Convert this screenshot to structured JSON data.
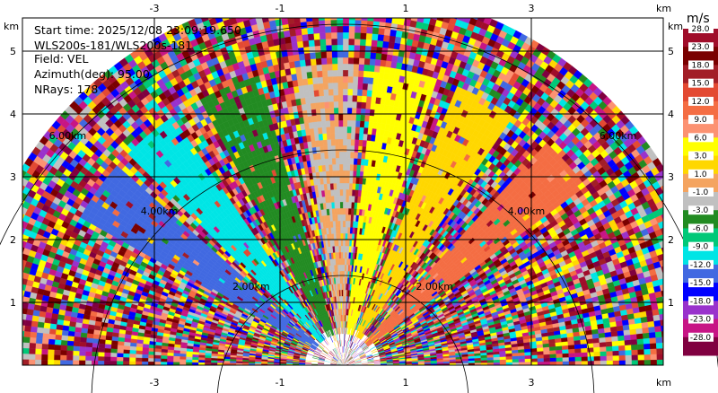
{
  "info": {
    "start_time": "Start time: 2025/12/08 23:09:19.650",
    "station": "WLS200s-181/WLS200s-181",
    "field": "Field: VEL",
    "azimuth": "Azimuth(deg): 95.00",
    "nrays": "NRays: 178"
  },
  "axes": {
    "unit": "km",
    "x_ticks": [
      "-3",
      "-1",
      "1",
      "3"
    ],
    "x_tick_values": [
      -3,
      -1,
      1,
      3
    ],
    "y_ticks": [
      "1",
      "2",
      "3",
      "4",
      "5"
    ],
    "y_tick_values": [
      1,
      2,
      3,
      4,
      5
    ]
  },
  "range_labels": [
    "2.00km",
    "4.00km",
    "6.00km"
  ],
  "colorbar": {
    "title": "m/s",
    "labels": [
      "28.0",
      "23.0",
      "18.0",
      "15.0",
      "12.0",
      "9.0",
      "6.0",
      "3.0",
      "1.0",
      "-1.0",
      "-3.0",
      "-6.0",
      "-9.0",
      "-12.0",
      "-15.0",
      "-18.0",
      "-23.0",
      "-28.0"
    ],
    "colors": [
      "#a00d2a",
      "#7a0000",
      "#a21e27",
      "#e34a33",
      "#f46d43",
      "#fc9272",
      "#ffff00",
      "#ffd700",
      "#f4a460",
      "#c0c0c0",
      "#228b22",
      "#00c878",
      "#00e5e5",
      "#4169e1",
      "#0000ff",
      "#9932cc",
      "#c71585",
      "#800040"
    ]
  },
  "chart_data": {
    "type": "heatmap",
    "title": "",
    "field": "VEL",
    "units": "m/s",
    "xlim": [
      -5.3,
      5.3
    ],
    "ylim": [
      0,
      5.4
    ],
    "max_range_km": 6.0,
    "nrays": 178,
    "azimuth_deg": 95.0,
    "velocity_min": -28.0,
    "velocity_max": 28.0,
    "coherent_sectors": [
      {
        "bearing_deg_from_x_axis": 145,
        "velocity_ms": -13.5
      },
      {
        "bearing_deg_from_x_axis": 130,
        "velocity_ms": -10.5
      },
      {
        "bearing_deg_from_x_axis": 112,
        "velocity_ms": -4.5
      },
      {
        "bearing_deg_from_x_axis": 93,
        "velocity_ms": 0.0
      },
      {
        "bearing_deg_from_x_axis": 78,
        "velocity_ms": 7.5
      },
      {
        "bearing_deg_from_x_axis": 62,
        "velocity_ms": 4.5
      },
      {
        "bearing_deg_from_x_axis": 42,
        "velocity_ms": 13.5
      }
    ]
  }
}
